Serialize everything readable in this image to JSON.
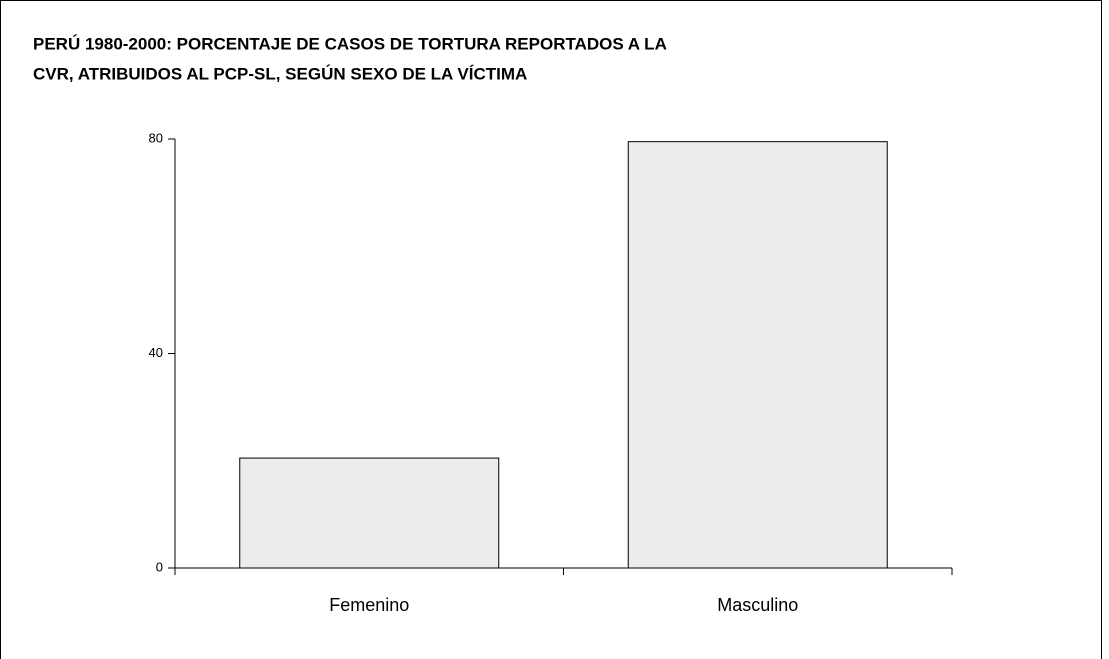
{
  "chart_data": {
    "type": "bar",
    "title": [
      "PERÚ 1980-2000: PORCENTAJE DE CASOS DE TORTURA REPORTADOS A LA",
      "CVR, ATRIBUIDOS AL PCP-SL, SEGÚN SEXO DE LA VÍCTIMA"
    ],
    "categories": [
      "Femenino",
      "Masculino"
    ],
    "values": [
      20.5,
      79.5
    ],
    "color": "#ececec",
    "ylim": [
      0,
      80
    ],
    "yticks": [
      0,
      40,
      80
    ],
    "grid": false
  }
}
